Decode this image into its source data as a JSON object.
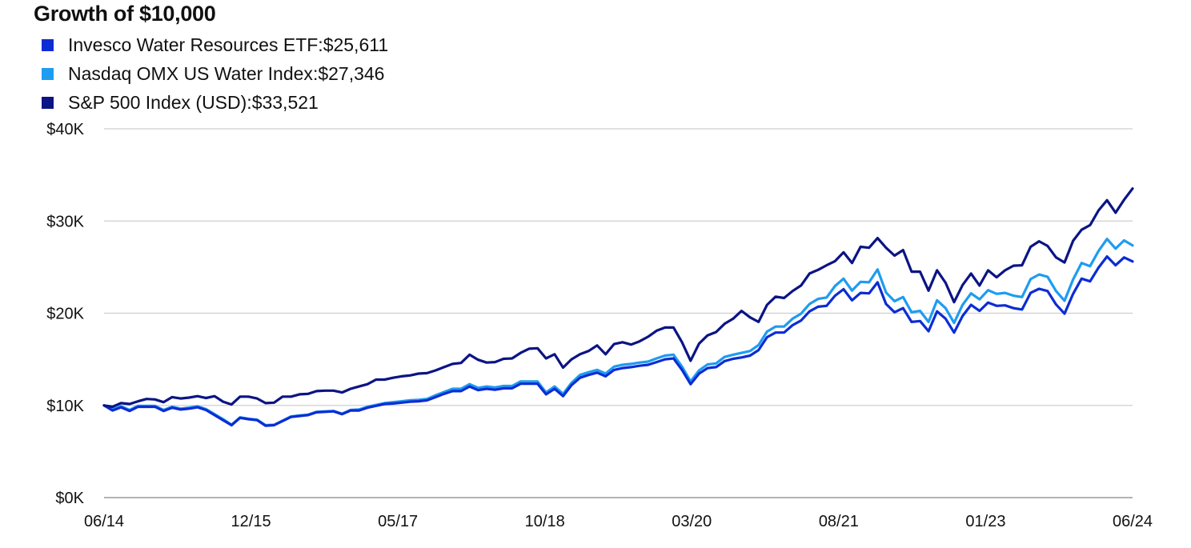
{
  "chart_data": {
    "type": "line",
    "title": "Growth of $10,000",
    "legend_position": "top-left",
    "grid": true,
    "ylim": [
      0,
      40000
    ],
    "yticks": [
      0,
      10000,
      20000,
      30000,
      40000
    ],
    "ytick_labels": [
      "$0K",
      "$10K",
      "$20K",
      "$30K",
      "$40K"
    ],
    "x_start": "2014-06",
    "x_end": "2024-06",
    "xtick_labels": [
      "06/14",
      "12/15",
      "05/17",
      "10/18",
      "03/20",
      "08/21",
      "01/23",
      "06/24"
    ],
    "series": [
      {
        "name": "Invesco Water Resources ETF",
        "final_label": "$25,611",
        "color": "#0c2cd4",
        "values": [
          10000,
          9450,
          9800,
          9400,
          9850,
          9850,
          9850,
          9400,
          9750,
          9550,
          9650,
          9800,
          9500,
          8950,
          8400,
          7850,
          8650,
          8500,
          8400,
          7800,
          7850,
          8300,
          8750,
          8850,
          8950,
          9250,
          9300,
          9350,
          9050,
          9450,
          9450,
          9750,
          9950,
          10150,
          10200,
          10300,
          10400,
          10450,
          10550,
          10900,
          11250,
          11550,
          11550,
          12050,
          11650,
          11800,
          11700,
          11850,
          11850,
          12350,
          12350,
          12350,
          11200,
          11800,
          11000,
          12200,
          13000,
          13300,
          13550,
          13150,
          13850,
          14050,
          14150,
          14300,
          14400,
          14700,
          15000,
          15100,
          13850,
          12300,
          13450,
          14050,
          14150,
          14800,
          15050,
          15200,
          15400,
          16000,
          17400,
          17900,
          17900,
          18700,
          19200,
          20200,
          20700,
          20800,
          21900,
          22600,
          21400,
          22200,
          22150,
          23350,
          21000,
          20100,
          20550,
          19050,
          19150,
          18050,
          20200,
          19400,
          17900,
          19700,
          20900,
          20250,
          21150,
          20800,
          20850,
          20550,
          20400,
          22200,
          22650,
          22400,
          20950,
          19950,
          22100,
          23750,
          23450,
          24950,
          26150,
          25200,
          26050,
          25611
        ]
      },
      {
        "name": "Nasdaq OMX US Water Index",
        "final_label": "$27,346",
        "color": "#1e9cf0",
        "values": [
          10000,
          9550,
          9900,
          9500,
          9950,
          9950,
          9950,
          9500,
          9850,
          9650,
          9750,
          9900,
          9600,
          9050,
          8500,
          7900,
          8700,
          8550,
          8450,
          7850,
          7900,
          8350,
          8800,
          8900,
          9000,
          9300,
          9350,
          9400,
          9100,
          9500,
          9550,
          9850,
          10050,
          10250,
          10350,
          10450,
          10550,
          10600,
          10700,
          11100,
          11450,
          11800,
          11800,
          12300,
          11900,
          12050,
          11950,
          12100,
          12100,
          12600,
          12600,
          12600,
          11400,
          12050,
          11250,
          12450,
          13300,
          13600,
          13850,
          13450,
          14200,
          14400,
          14500,
          14650,
          14750,
          15100,
          15400,
          15500,
          14200,
          12600,
          13800,
          14450,
          14550,
          15250,
          15500,
          15700,
          15900,
          16550,
          18000,
          18550,
          18550,
          19400,
          19950,
          21000,
          21550,
          21700,
          22950,
          23750,
          22450,
          23400,
          23350,
          24750,
          22250,
          21300,
          21750,
          20100,
          20250,
          19050,
          21400,
          20550,
          18950,
          20900,
          22150,
          21500,
          22500,
          22100,
          22200,
          21900,
          21750,
          23700,
          24200,
          23950,
          22400,
          21350,
          23650,
          25450,
          25100,
          26750,
          28050,
          27000,
          27900,
          27346
        ]
      },
      {
        "name": "S&P 500 Index (USD)",
        "final_label": "$33,521",
        "color": "#0b1484",
        "values": [
          10000,
          9850,
          10250,
          10150,
          10450,
          10700,
          10650,
          10350,
          10900,
          10750,
          10850,
          11000,
          10800,
          11000,
          10400,
          10100,
          10950,
          10950,
          10750,
          10250,
          10300,
          10950,
          10950,
          11200,
          11250,
          11550,
          11600,
          11600,
          11400,
          11800,
          12050,
          12300,
          12800,
          12800,
          13000,
          13150,
          13250,
          13450,
          13500,
          13800,
          14150,
          14500,
          14600,
          15500,
          14950,
          14650,
          14700,
          15050,
          15100,
          15700,
          16150,
          16200,
          15100,
          15550,
          14100,
          15000,
          15550,
          15900,
          16500,
          15550,
          16650,
          16850,
          16600,
          16950,
          17450,
          18100,
          18450,
          18450,
          16850,
          14850,
          16700,
          17600,
          17950,
          18850,
          19400,
          20250,
          19550,
          19050,
          20900,
          21800,
          21650,
          22400,
          23000,
          24300,
          24700,
          25200,
          25650,
          26600,
          25450,
          27200,
          27100,
          28150,
          27100,
          26250,
          26850,
          24500,
          24500,
          22450,
          24650,
          23300,
          21200,
          23050,
          24300,
          23000,
          24650,
          23900,
          24650,
          25150,
          25200,
          27200,
          27800,
          27300,
          26050,
          25500,
          27850,
          29050,
          29550,
          31150,
          32250,
          30900,
          32300,
          33521
        ]
      }
    ]
  }
}
